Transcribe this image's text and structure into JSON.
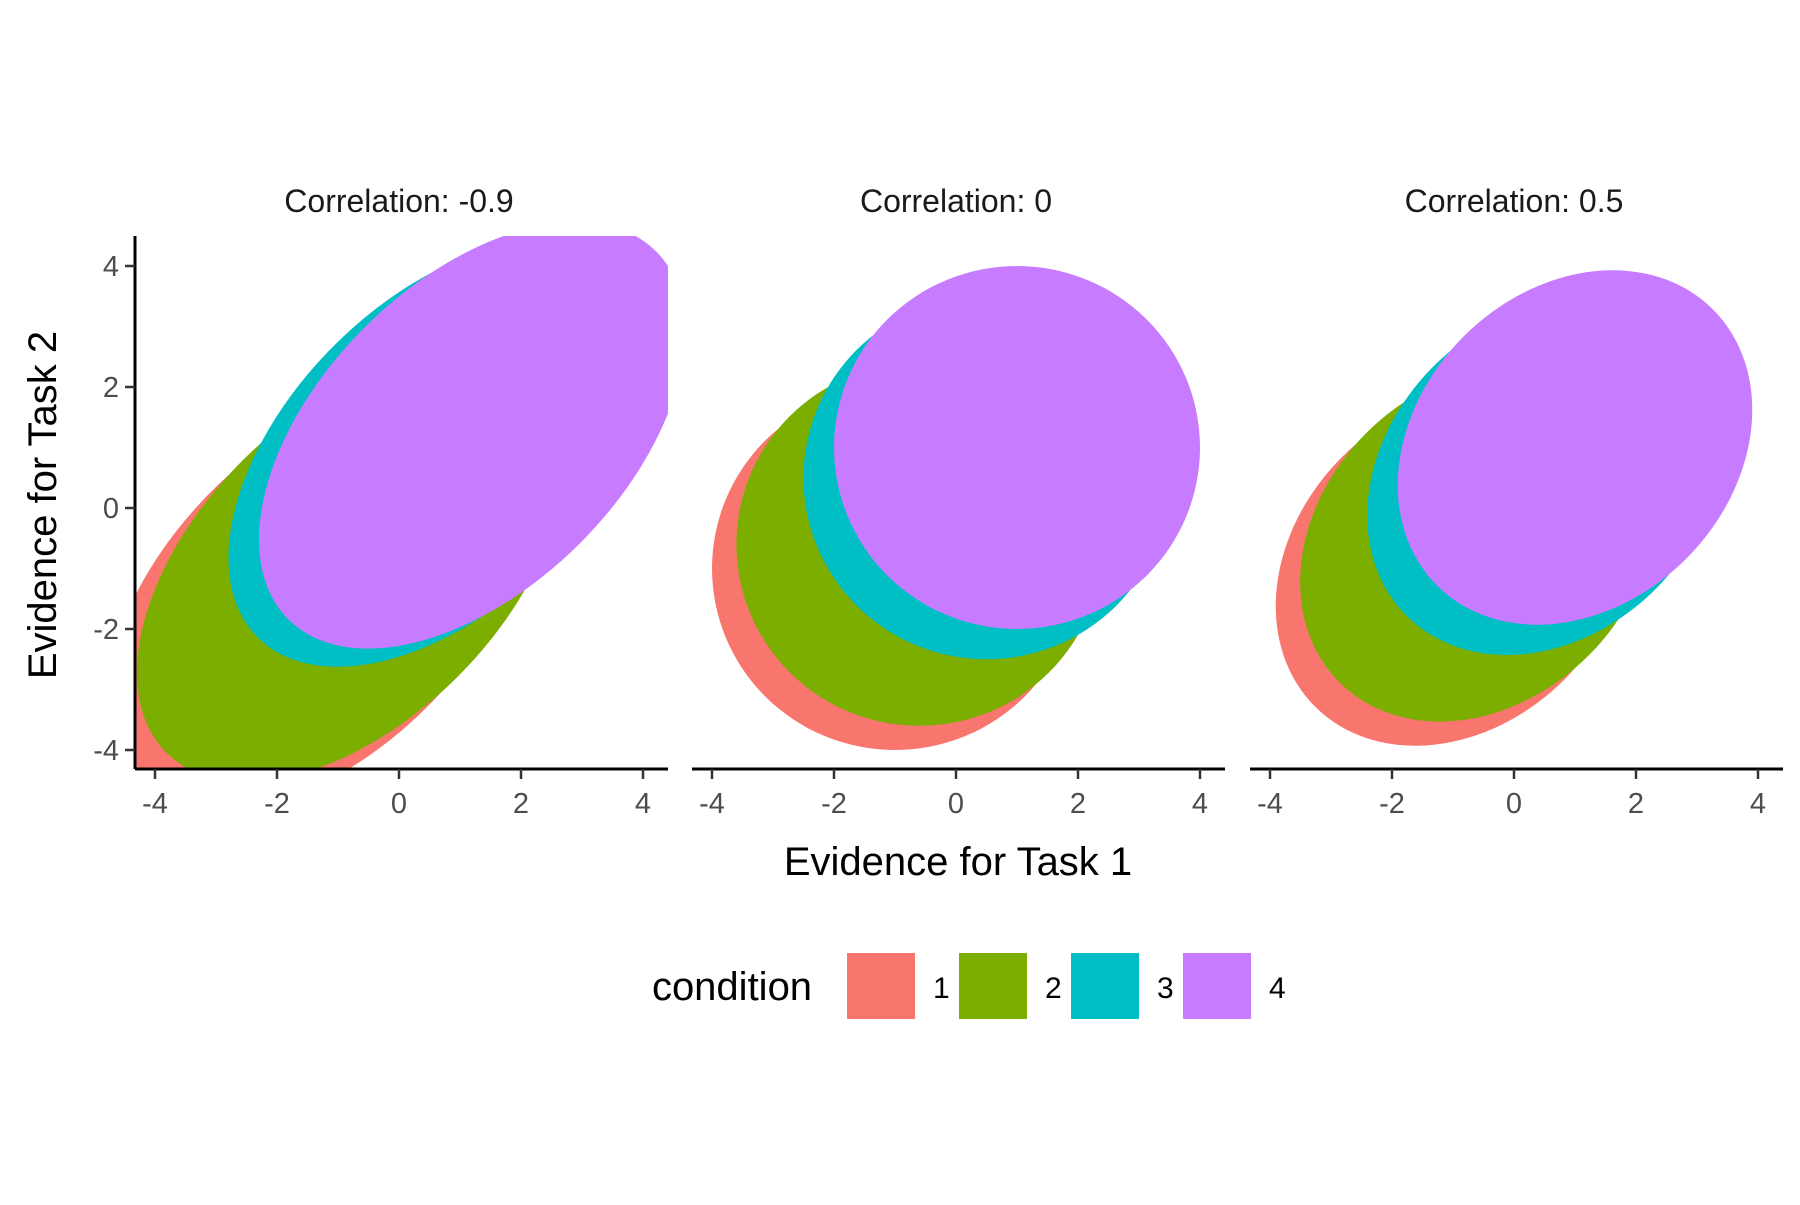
{
  "chart_data": {
    "type": "ellipse-facets",
    "xlabel": "Evidence for Task 1",
    "ylabel": "Evidence for Task 2",
    "xlim": [
      -4.5,
      4.2
    ],
    "ylim": [
      -4.5,
      4.3
    ],
    "xticks": [
      -4,
      -2,
      0,
      2,
      4
    ],
    "yticks": [
      -4,
      -2,
      0,
      2,
      4
    ],
    "grid": false,
    "legend": {
      "title": "condition",
      "position": "bottom",
      "entries": [
        {
          "label": "1",
          "color": "#F8766D"
        },
        {
          "label": "2",
          "color": "#7CAE00"
        },
        {
          "label": "3",
          "color": "#00BFC4"
        },
        {
          "label": "4",
          "color": "#C77CFF"
        }
      ]
    },
    "panels": [
      {
        "title": "Correlation: -0.9",
        "correlation": -0.9,
        "ellipses": [
          {
            "condition": "1",
            "cx": -1.3,
            "cy": -1.5,
            "rx": 2.5,
            "ry": 4.3
          },
          {
            "condition": "2",
            "cx": -0.8,
            "cy": -1.0,
            "rx": 2.5,
            "ry": 4.3
          },
          {
            "condition": "3",
            "cx": 0.7,
            "cy": 0.9,
            "rx": 2.5,
            "ry": 4.3
          },
          {
            "condition": "4",
            "cx": 1.2,
            "cy": 1.2,
            "rx": 2.5,
            "ry": 4.3
          }
        ]
      },
      {
        "title": "Correlation: 0",
        "correlation": 0,
        "ellipses": [
          {
            "condition": "1",
            "cx": -1.0,
            "cy": -1.0,
            "rx": 3.0,
            "ry": 3.0
          },
          {
            "condition": "2",
            "cx": -0.6,
            "cy": -0.6,
            "rx": 3.0,
            "ry": 3.0
          },
          {
            "condition": "3",
            "cx": 0.5,
            "cy": 0.5,
            "rx": 3.0,
            "ry": 3.0
          },
          {
            "condition": "4",
            "cx": 1.0,
            "cy": 1.0,
            "rx": 3.0,
            "ry": 3.0
          }
        ]
      },
      {
        "title": "Correlation: 0.5",
        "correlation": 0.5,
        "ellipses": [
          {
            "condition": "1",
            "cx": -1.0,
            "cy": -1.0,
            "rx": 3.2,
            "ry": 2.6
          },
          {
            "condition": "2",
            "cx": -0.6,
            "cy": -0.6,
            "rx": 3.2,
            "ry": 2.6
          },
          {
            "condition": "3",
            "cx": 0.5,
            "cy": 0.5,
            "rx": 3.2,
            "ry": 2.6
          },
          {
            "condition": "4",
            "cx": 1.0,
            "cy": 1.0,
            "rx": 3.2,
            "ry": 2.6
          }
        ]
      }
    ]
  }
}
